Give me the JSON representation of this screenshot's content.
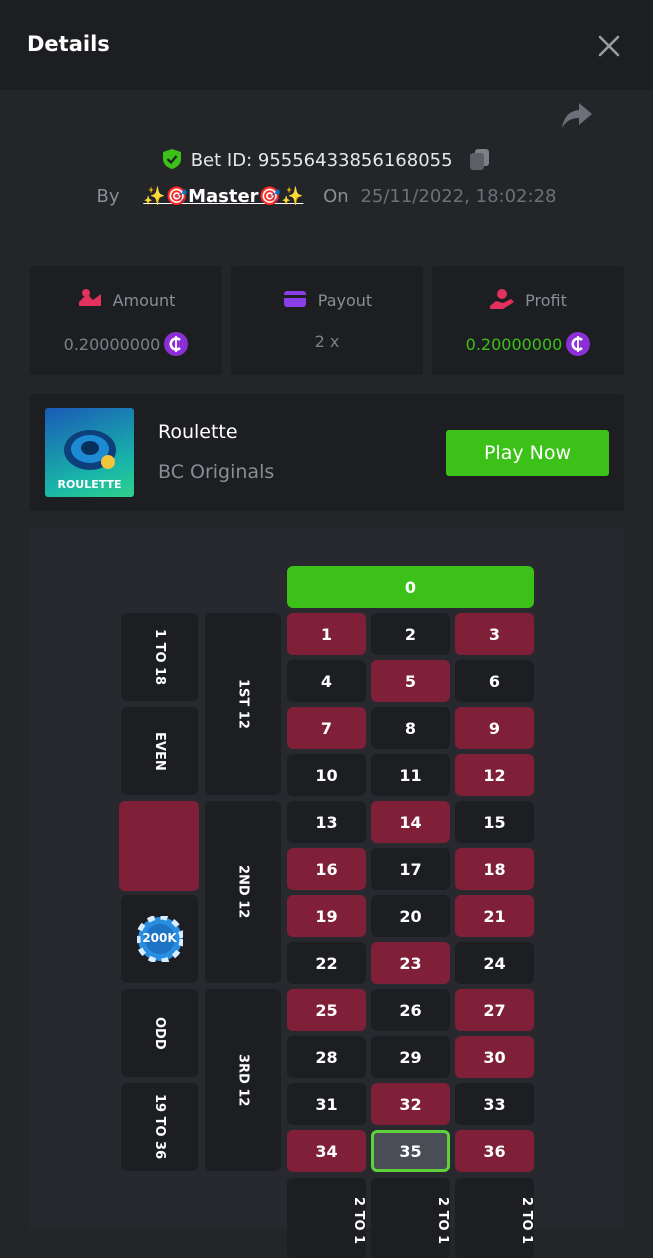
{
  "header": {
    "title": "Details"
  },
  "bet": {
    "id": "Bet ID: 95556433856168055",
    "by_label": "By",
    "user": "✨🎯Master🎯✨",
    "on_label": "On",
    "time": "25/11/2022, 18:02:28"
  },
  "stats": [
    {
      "label": "Amount",
      "value": "0.20000000"
    },
    {
      "label": "Payout",
      "value": "2 x"
    },
    {
      "label": "Profit",
      "value": "0.20000000"
    }
  ],
  "game": {
    "name": "Roulette",
    "provider": "BC Originals",
    "button": "Play Now",
    "thumb_label": "ROULETTE"
  },
  "board": {
    "zero": "0",
    "cells": [
      {
        "n": "1",
        "red": true
      },
      {
        "n": "2",
        "red": false
      },
      {
        "n": "3",
        "red": true
      },
      {
        "n": "4",
        "red": false
      },
      {
        "n": "5",
        "red": true
      },
      {
        "n": "6",
        "red": false
      },
      {
        "n": "7",
        "red": true
      },
      {
        "n": "8",
        "red": false
      },
      {
        "n": "9",
        "red": true
      },
      {
        "n": "10",
        "red": false
      },
      {
        "n": "11",
        "red": false
      },
      {
        "n": "12",
        "red": true
      },
      {
        "n": "13",
        "red": false
      },
      {
        "n": "14",
        "red": true
      },
      {
        "n": "15",
        "red": false
      },
      {
        "n": "16",
        "red": true
      },
      {
        "n": "17",
        "red": false
      },
      {
        "n": "18",
        "red": true
      },
      {
        "n": "19",
        "red": true
      },
      {
        "n": "20",
        "red": false
      },
      {
        "n": "21",
        "red": true
      },
      {
        "n": "22",
        "red": false
      },
      {
        "n": "23",
        "red": true
      },
      {
        "n": "24",
        "red": false
      },
      {
        "n": "25",
        "red": true
      },
      {
        "n": "26",
        "red": false
      },
      {
        "n": "27",
        "red": true
      },
      {
        "n": "28",
        "red": false
      },
      {
        "n": "29",
        "red": false
      },
      {
        "n": "30",
        "red": true
      },
      {
        "n": "31",
        "red": false
      },
      {
        "n": "32",
        "red": true
      },
      {
        "n": "33",
        "red": false
      },
      {
        "n": "34",
        "red": true
      },
      {
        "n": "35",
        "red": false,
        "selected": true
      },
      {
        "n": "36",
        "red": true
      }
    ],
    "outside": [
      "1 TO 18",
      "EVEN",
      "ODD",
      "19 TO 36"
    ],
    "chip": "200K",
    "dozens": [
      "1ST 12",
      "2ND 12",
      "3RD 12"
    ],
    "columns": [
      "2 TO 1",
      "2 TO 1",
      "2 TO 1"
    ]
  }
}
